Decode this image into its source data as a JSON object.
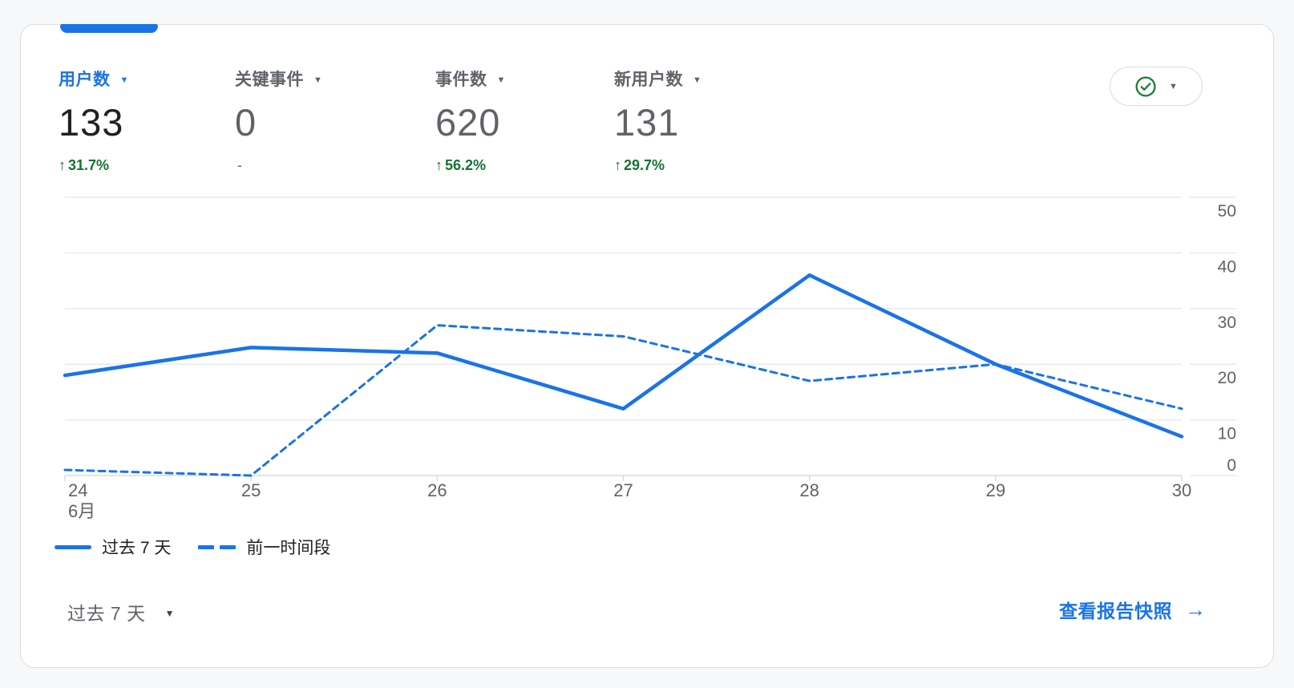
{
  "colors": {
    "accent": "#1a73e8",
    "green_change": "#137333",
    "check_green": "#188038",
    "text_dark": "#202124",
    "text_gray": "#5f6368",
    "grid_line": "#e8eaed",
    "axis_line": "#dadce0",
    "card_border": "#dadce0",
    "page_bg": "#f6f8fa"
  },
  "card": {
    "metrics": [
      {
        "label": "用户数",
        "value": "133",
        "arrow": "↑",
        "change": "31.7%",
        "direction": "up",
        "active": true
      },
      {
        "label": "关键事件",
        "value": "0",
        "arrow": "",
        "change": "-",
        "direction": "none",
        "active": false
      },
      {
        "label": "事件数",
        "value": "620",
        "arrow": "↑",
        "change": "56.2%",
        "direction": "up",
        "active": false
      },
      {
        "label": "新用户数",
        "value": "131",
        "arrow": "↑",
        "change": "29.7%",
        "direction": "up",
        "active": false
      }
    ],
    "status_button": {
      "icon": "check-circle-icon",
      "caret": "▼"
    },
    "chart_data": {
      "type": "line",
      "x": [
        24,
        25,
        26,
        27,
        28,
        29,
        30
      ],
      "x_month_label": "6月",
      "series": [
        {
          "name": "过去 7 天",
          "style": "solid",
          "values": [
            18,
            23,
            22,
            12,
            36,
            20,
            7
          ]
        },
        {
          "name": "前一时间段",
          "style": "dashed",
          "values": [
            1,
            0,
            27,
            25,
            17,
            20,
            12
          ]
        }
      ],
      "ylim": [
        0,
        50
      ],
      "yticks": [
        0,
        10,
        20,
        30,
        40,
        50
      ],
      "y_axis_side": "right",
      "grid": "horizontal",
      "legend_position": "bottom-left"
    },
    "legend": [
      {
        "label": "过去 7 天",
        "style": "solid"
      },
      {
        "label": "前一时间段",
        "style": "dashed"
      }
    ],
    "footer": {
      "range_label": "过去 7 天",
      "link_label": "查看报告快照",
      "link_arrow": "→"
    }
  }
}
